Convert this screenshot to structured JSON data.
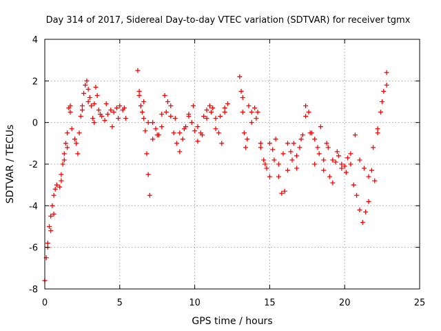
{
  "chart_data": {
    "type": "scatter",
    "title": "Day 314 of 2017, Sidereal Day-to-day VTEC variation (SDTVAR) for receiver tgmx",
    "xlabel": "GPS time / hours",
    "ylabel": "SDTVAR / TECUs",
    "xlim": [
      0,
      25
    ],
    "ylim": [
      -8,
      4
    ],
    "xticks": [
      0,
      5,
      10,
      15,
      20,
      25
    ],
    "yticks": [
      -8,
      -6,
      -4,
      -2,
      0,
      2,
      4
    ],
    "xtick_labels": [
      "0",
      "5",
      "10",
      "15",
      "20",
      "25"
    ],
    "ytick_labels": [
      "-8",
      "-6",
      "-4",
      "-2",
      "0",
      "2",
      "4"
    ],
    "grid": true,
    "marker": "plus",
    "series": [
      {
        "name": "SDTVAR",
        "color": "#ff0000",
        "x": [
          0.0,
          0.1,
          0.2,
          0.3,
          0.4,
          0.5,
          0.6,
          0.7,
          0.8,
          1.0,
          1.1,
          1.2,
          1.3,
          1.4,
          1.5,
          1.6,
          1.7,
          1.8,
          2.0,
          2.2,
          2.3,
          2.4,
          2.5,
          2.6,
          2.7,
          2.8,
          2.9,
          3.0,
          3.1,
          3.2,
          3.3,
          3.4,
          3.5,
          3.6,
          3.8,
          4.0,
          4.2,
          4.4,
          4.6,
          4.8,
          5.0,
          5.2,
          5.4,
          6.2,
          6.3,
          6.4,
          6.5,
          6.6,
          6.7,
          6.8,
          6.9,
          7.0,
          7.2,
          7.4,
          7.6,
          7.8,
          8.0,
          8.2,
          8.4,
          8.6,
          8.8,
          9.0,
          9.2,
          9.4,
          9.6,
          9.8,
          10.0,
          10.2,
          10.4,
          10.6,
          10.8,
          11.0,
          11.2,
          11.4,
          11.6,
          11.8,
          12.0,
          12.2,
          13.0,
          13.1,
          13.2,
          13.3,
          13.4,
          13.6,
          13.8,
          14.0,
          14.2,
          14.4,
          14.6,
          14.8,
          15.0,
          15.2,
          15.4,
          15.6,
          15.8,
          16.0,
          16.2,
          16.4,
          16.6,
          16.8,
          17.0,
          17.2,
          17.4,
          17.6,
          17.8,
          18.0,
          18.2,
          18.4,
          18.6,
          18.8,
          19.0,
          19.2,
          19.4,
          19.6,
          19.8,
          20.0,
          20.2,
          20.4,
          20.6,
          20.8,
          21.0,
          21.2,
          21.4,
          21.6,
          21.8,
          22.0,
          22.2,
          22.4,
          22.6,
          22.8
        ],
        "y": [
          -7.6,
          -6.5,
          -5.8,
          -5.0,
          -4.5,
          -4.0,
          -3.5,
          -3.2,
          -3.0,
          -3.1,
          -2.5,
          -2.0,
          -1.5,
          -1.0,
          -0.5,
          0.7,
          0.8,
          -0.3,
          -0.8,
          -1.5,
          -0.5,
          0.3,
          0.8,
          1.4,
          1.8,
          2.0,
          1.6,
          1.2,
          0.8,
          0.2,
          0.9,
          1.7,
          1.3,
          0.6,
          0.3,
          0.1,
          0.4,
          0.6,
          0.5,
          0.7,
          0.8,
          0.6,
          0.2,
          2.5,
          1.5,
          0.8,
          0.5,
          0.2,
          -0.4,
          -1.5,
          -2.5,
          -3.5,
          0.0,
          -0.3,
          -0.6,
          0.4,
          1.3,
          1.0,
          0.3,
          -0.5,
          -1.0,
          -1.4,
          -0.8,
          -0.2,
          0.3,
          0.0,
          -0.4,
          -0.9,
          -0.5,
          0.3,
          0.6,
          0.8,
          0.7,
          0.2,
          -0.5,
          -1.0,
          0.5,
          0.9,
          2.2,
          1.5,
          0.5,
          -0.5,
          -1.2,
          0.8,
          0.0,
          0.7,
          0.5,
          -1.0,
          -1.8,
          -2.2,
          -2.6,
          -1.3,
          -0.8,
          -2.6,
          -3.4,
          -3.3,
          -2.3,
          -1.4,
          -1.0,
          -1.6,
          -1.2,
          -0.6,
          0.3,
          0.5,
          -0.5,
          -2.0,
          -1.2,
          -0.2,
          -1.8,
          -1.0,
          -2.6,
          -2.9,
          -1.9,
          -1.6,
          -2.2,
          -2.1,
          -1.7,
          -2.0,
          -3.0,
          -3.5,
          -4.2,
          -4.8,
          -4.3,
          -3.8,
          -2.3,
          -2.8,
          -0.5,
          0.5,
          1.5,
          2.4
        ]
      },
      {
        "name": "SDTVAR",
        "color": "#ff0000",
        "x": [
          0.2,
          0.4,
          0.6,
          1.1,
          1.3,
          1.5,
          1.7,
          2.1,
          2.5,
          2.9,
          3.3,
          3.7,
          4.1,
          4.5,
          4.9,
          5.3,
          6.3,
          6.6,
          6.9,
          7.2,
          7.5,
          7.8,
          8.1,
          8.4,
          8.7,
          9.0,
          9.3,
          9.6,
          9.9,
          10.2,
          10.5,
          10.8,
          11.1,
          11.4,
          11.7,
          12.0,
          13.2,
          13.5,
          13.8,
          14.1,
          14.4,
          14.7,
          15.0,
          15.3,
          15.6,
          15.9,
          16.2,
          16.5,
          16.8,
          17.1,
          17.4,
          17.7,
          18.0,
          18.3,
          18.6,
          18.9,
          19.2,
          19.5,
          19.8,
          20.1,
          20.4,
          20.7,
          21.0,
          21.3,
          21.6,
          21.9,
          22.2,
          22.5,
          22.8
        ],
        "y": [
          -6.0,
          -5.2,
          -4.4,
          -2.8,
          -1.8,
          -1.2,
          0.5,
          -1.0,
          0.6,
          1.0,
          0.0,
          0.4,
          0.9,
          -0.2,
          0.2,
          0.7,
          1.3,
          1.0,
          0.0,
          -0.8,
          -0.6,
          -0.2,
          0.5,
          0.8,
          0.2,
          -0.5,
          -0.3,
          0.4,
          0.8,
          -0.2,
          -0.6,
          0.2,
          0.5,
          -0.3,
          0.3,
          0.7,
          1.2,
          -0.8,
          0.5,
          0.2,
          -1.2,
          -2.0,
          -1.0,
          -1.8,
          -2.0,
          -1.5,
          -1.0,
          -1.8,
          -2.2,
          -0.8,
          0.8,
          -0.5,
          -0.8,
          -1.5,
          -2.3,
          -1.2,
          -1.8,
          -1.4,
          -2.0,
          -2.4,
          -1.5,
          -0.6,
          -1.8,
          -2.2,
          -2.6,
          -1.2,
          -0.3,
          1.0,
          1.8
        ]
      }
    ]
  }
}
